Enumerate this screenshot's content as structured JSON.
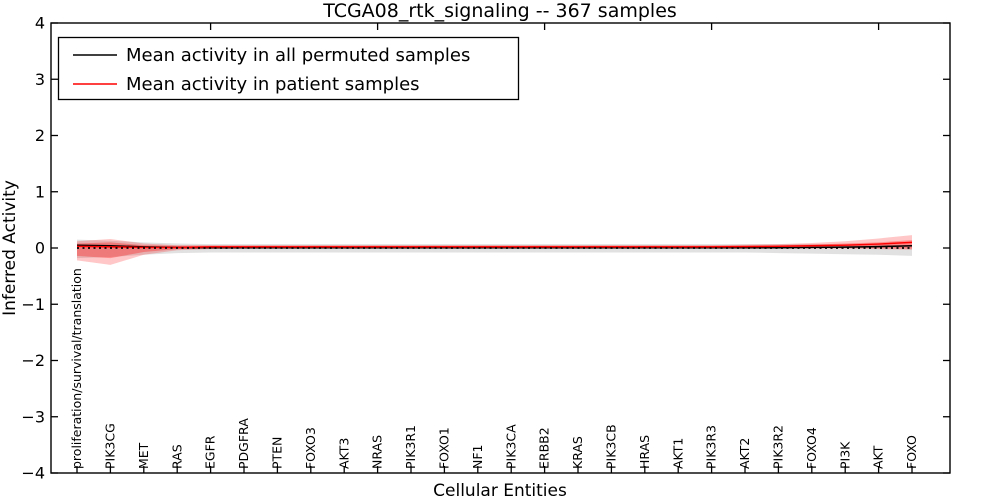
{
  "chart_data": {
    "type": "line",
    "title": "TCGA08_rtk_signaling -- 367 samples",
    "xlabel": "Cellular Entities",
    "ylabel": "Inferred Activity",
    "ylim": [
      -4,
      4
    ],
    "grid": false,
    "legend_position": "upper left",
    "ytick_labels": [
      "4",
      "3",
      "2",
      "1",
      "0",
      "−1",
      "−2",
      "−3",
      "−4"
    ],
    "ytick_values": [
      4,
      3,
      2,
      1,
      0,
      -1,
      -2,
      -3,
      -4
    ],
    "top_tick_indices": [
      4,
      9,
      14,
      19,
      24
    ],
    "categories": [
      "proliferation/survival/translation",
      "PIK3CG",
      "MET",
      "RAS",
      "EGFR",
      "PDGFRA",
      "PTEN",
      "FOXO3",
      "AKT3",
      "NRAS",
      "PIK3R1",
      "FOXO1",
      "NF1",
      "PIK3CA",
      "ERBB2",
      "KRAS",
      "PIK3CB",
      "HRAS",
      "AKT1",
      "PIK3R3",
      "AKT2",
      "PIK3R2",
      "FOXO4",
      "PI3K",
      "AKT",
      "FOXO"
    ],
    "series": [
      {
        "name": "Mean activity in all permuted samples",
        "color": "#000000",
        "style": "solid",
        "values": [
          0.05,
          0.04,
          0.02,
          0.01,
          0.005,
          0.005,
          0.005,
          0.005,
          0.005,
          0.005,
          0.005,
          0.005,
          0.005,
          0.005,
          0.005,
          0.005,
          0.005,
          0.005,
          0.005,
          0.005,
          0.005,
          0.005,
          0.01,
          0.015,
          0.025,
          0.04
        ]
      },
      {
        "name": "Mean activity in patient samples",
        "color": "#ff0000",
        "style": "solid",
        "values": [
          0.03,
          0.02,
          0.01,
          0.01,
          0.02,
          0.02,
          0.02,
          0.02,
          0.02,
          0.02,
          0.02,
          0.02,
          0.02,
          0.02,
          0.02,
          0.02,
          0.02,
          0.02,
          0.02,
          0.02,
          0.025,
          0.03,
          0.04,
          0.05,
          0.07,
          0.1
        ]
      },
      {
        "name": "zero reference",
        "color": "#000000",
        "style": "dotted",
        "values": [
          0,
          0,
          0,
          0,
          0,
          0,
          0,
          0,
          0,
          0,
          0,
          0,
          0,
          0,
          0,
          0,
          0,
          0,
          0,
          0,
          0,
          0,
          0,
          0,
          0,
          0
        ]
      }
    ],
    "bands": [
      {
        "name": "permuted samples range",
        "color": "#aaaaaa",
        "opacity": 0.35,
        "upper": [
          0.15,
          0.13,
          0.1,
          0.08,
          0.07,
          0.07,
          0.07,
          0.07,
          0.07,
          0.07,
          0.07,
          0.07,
          0.07,
          0.07,
          0.07,
          0.07,
          0.07,
          0.07,
          0.07,
          0.07,
          0.07,
          0.07,
          0.07,
          0.06,
          0.06,
          0.05
        ],
        "lower": [
          -0.18,
          -0.16,
          -0.12,
          -0.09,
          -0.08,
          -0.08,
          -0.08,
          -0.08,
          -0.08,
          -0.08,
          -0.08,
          -0.08,
          -0.08,
          -0.08,
          -0.08,
          -0.08,
          -0.08,
          -0.08,
          -0.08,
          -0.08,
          -0.08,
          -0.09,
          -0.1,
          -0.11,
          -0.12,
          -0.14
        ]
      },
      {
        "name": "patient samples outer band",
        "color": "#ff0000",
        "opacity": 0.22,
        "upper": [
          0.12,
          0.16,
          0.08,
          0.05,
          0.05,
          0.05,
          0.05,
          0.05,
          0.05,
          0.05,
          0.05,
          0.05,
          0.05,
          0.05,
          0.05,
          0.05,
          0.05,
          0.05,
          0.05,
          0.05,
          0.06,
          0.07,
          0.09,
          0.12,
          0.17,
          0.23
        ],
        "lower": [
          -0.22,
          -0.3,
          -0.12,
          -0.04,
          -0.02,
          -0.01,
          -0.01,
          -0.01,
          -0.01,
          -0.01,
          -0.01,
          -0.01,
          -0.01,
          -0.01,
          -0.01,
          -0.01,
          -0.01,
          -0.01,
          -0.01,
          -0.01,
          -0.01,
          -0.01,
          -0.01,
          -0.01,
          -0.02,
          -0.03
        ],
        "legend": null
      },
      {
        "name": "patient samples inner band",
        "color": "#ff0000",
        "opacity": 0.3,
        "upper": [
          0.08,
          0.1,
          0.05,
          0.04,
          0.04,
          0.04,
          0.04,
          0.04,
          0.04,
          0.04,
          0.04,
          0.04,
          0.04,
          0.04,
          0.04,
          0.04,
          0.04,
          0.04,
          0.04,
          0.04,
          0.045,
          0.05,
          0.06,
          0.08,
          0.1,
          0.14
        ],
        "lower": [
          -0.14,
          -0.18,
          -0.07,
          -0.02,
          -0.01,
          0,
          0,
          0,
          0,
          0,
          0,
          0,
          0,
          0,
          0,
          0,
          0,
          0,
          0,
          0,
          0,
          0,
          0,
          0,
          -0.005,
          -0.01
        ]
      }
    ]
  },
  "legend": {
    "entries": [
      {
        "label": "Mean activity in all permuted samples",
        "color": "#000000"
      },
      {
        "label": "Mean activity in patient samples",
        "color": "#ff0000"
      }
    ]
  },
  "colors": {
    "foreground": "#000000",
    "background": "#ffffff",
    "patient": "#ff0000",
    "permuted": "#000000",
    "permuted_band": "#aaaaaa"
  }
}
